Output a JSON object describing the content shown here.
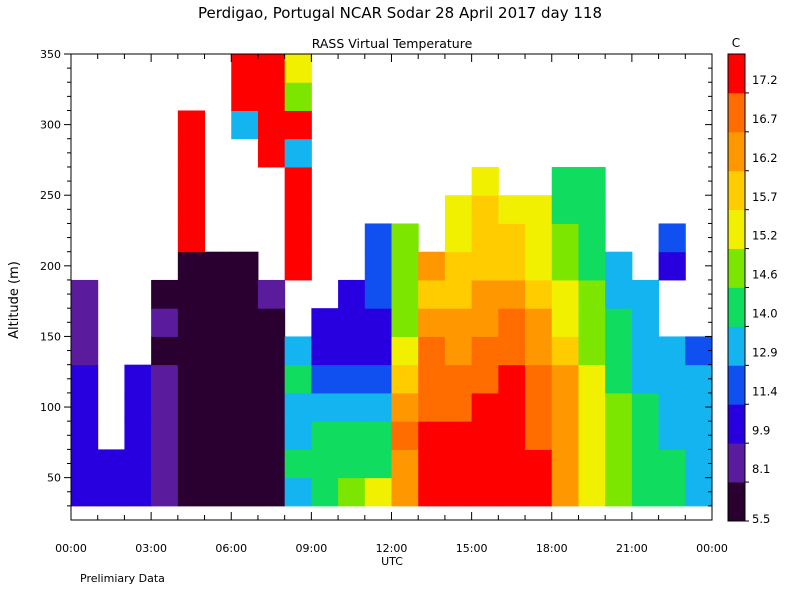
{
  "header": {
    "title": "Perdigao, Portugal  NCAR Sodar  28 April 2017  day 118",
    "subtitle": "RASS Virtual Temperature"
  },
  "footer": {
    "note": "Prelimiary Data"
  },
  "chart_data": {
    "type": "heatmap",
    "title": "Perdigao, Portugal  NCAR Sodar  28 April 2017  day 118",
    "subtitle": "RASS Virtual Temperature",
    "xlabel": "UTC",
    "ylabel": "Altitude (m)",
    "x_ticks": [
      "00:00",
      "03:00",
      "06:00",
      "09:00",
      "12:00",
      "15:00",
      "18:00",
      "21:00",
      "00:00"
    ],
    "xlim_hours": [
      0,
      24
    ],
    "ylim": [
      20,
      350
    ],
    "y_ticks": [
      50,
      100,
      150,
      200,
      250,
      300,
      350
    ],
    "colorbar": {
      "unit": "C",
      "ticks": [
        "5.5",
        "8.1",
        "9.9",
        "11.4",
        "12.9",
        "14.0",
        "14.6",
        "15.2",
        "15.7",
        "16.2",
        "16.7",
        "17.2"
      ],
      "colors": [
        "#2a0030",
        "#5a1c9c",
        "#2800e0",
        "#1050f0",
        "#14b4f0",
        "#10dc60",
        "#7ce600",
        "#f0f000",
        "#ffcc00",
        "#ff9800",
        "#ff6c00",
        "#ff0000"
      ]
    },
    "y_levels": [
      40,
      60,
      80,
      100,
      120,
      140,
      160,
      180,
      200,
      220,
      240,
      260,
      280,
      300,
      320,
      340
    ],
    "hours": [
      0.5,
      1.5,
      2.5,
      3.5,
      4.5,
      5.5,
      6.5,
      7.5,
      8.5,
      9.5,
      10.5,
      11.5,
      12.5,
      13.5,
      14.5,
      15.5,
      16.5,
      17.5,
      18.5,
      19.5,
      20.5,
      21.5,
      22.5,
      23.5
    ],
    "temperature_c": [
      [
        10.5,
        11.2,
        10.2,
        8.5,
        8.0,
        6.0,
        6.5,
        7.0,
        13.0,
        14.2,
        14.6,
        15.2,
        16.2,
        17.2,
        17.4,
        17.4,
        17.6,
        17.5,
        16.2,
        15.2,
        14.6,
        14.4,
        14.2,
        13.8
      ],
      [
        10.3,
        11.0,
        10.5,
        8.3,
        7.8,
        6.0,
        6.2,
        7.1,
        14.0,
        14.0,
        14.0,
        14.0,
        16.5,
        17.2,
        17.3,
        17.4,
        17.5,
        17.3,
        16.4,
        15.4,
        14.8,
        14.3,
        14.0,
        13.5
      ],
      [
        10.2,
        null,
        11.0,
        8.5,
        7.8,
        6.0,
        6.5,
        7.2,
        13.5,
        14.0,
        14.0,
        14.0,
        16.8,
        17.2,
        17.2,
        17.3,
        17.4,
        17.1,
        16.5,
        15.6,
        14.8,
        14.2,
        13.8,
        13.2
      ],
      [
        10.0,
        null,
        10.5,
        8.3,
        7.8,
        6.2,
        6.8,
        7.4,
        13.5,
        12.9,
        12.9,
        12.9,
        16.5,
        17.0,
        17.1,
        17.2,
        17.4,
        17.0,
        16.6,
        15.5,
        14.6,
        14.0,
        13.6,
        12.9
      ],
      [
        9.9,
        null,
        9.9,
        8.2,
        7.6,
        6.0,
        6.5,
        7.0,
        14.4,
        11.4,
        11.4,
        11.4,
        16.0,
        17.0,
        16.9,
        17.0,
        17.2,
        16.9,
        16.3,
        15.3,
        14.5,
        13.8,
        13.3,
        12.9
      ],
      [
        9.7,
        null,
        null,
        8.0,
        7.4,
        6.0,
        6.6,
        7.0,
        12.9,
        11.0,
        11.0,
        11.0,
        15.4,
        16.8,
        16.6,
        16.8,
        17.0,
        16.6,
        16.0,
        15.0,
        14.2,
        13.6,
        13.0,
        12.8
      ],
      [
        9.5,
        null,
        null,
        8.2,
        7.5,
        6.4,
        7.0,
        7.8,
        null,
        10.8,
        10.8,
        11.2,
        15.0,
        16.5,
        16.3,
        16.4,
        16.8,
        16.3,
        15.6,
        14.8,
        14.0,
        13.3,
        null,
        null
      ],
      [
        9.8,
        null,
        null,
        7.5,
        7.0,
        6.8,
        7.4,
        8.2,
        null,
        null,
        11.0,
        12.0,
        14.8,
        16.0,
        16.0,
        16.2,
        16.4,
        16.0,
        15.4,
        14.6,
        13.8,
        13.0,
        null,
        null
      ],
      [
        null,
        null,
        null,
        null,
        7.0,
        7.2,
        7.0,
        null,
        17.4,
        null,
        null,
        12.5,
        15.0,
        16.2,
        16.0,
        16.1,
        16.0,
        15.6,
        14.8,
        14.2,
        13.5,
        null,
        11.2,
        null
      ],
      [
        null,
        null,
        null,
        null,
        17.4,
        null,
        null,
        null,
        17.2,
        null,
        null,
        12.5,
        14.8,
        null,
        15.6,
        16.0,
        15.8,
        15.4,
        14.6,
        14.0,
        null,
        null,
        11.4,
        null
      ],
      [
        null,
        null,
        null,
        null,
        17.4,
        null,
        null,
        null,
        17.3,
        null,
        null,
        null,
        null,
        null,
        15.5,
        15.8,
        15.6,
        15.2,
        14.5,
        14.2,
        null,
        null,
        null,
        null
      ],
      [
        null,
        null,
        null,
        null,
        17.4,
        null,
        null,
        null,
        17.3,
        null,
        null,
        null,
        null,
        null,
        null,
        15.6,
        null,
        null,
        14.5,
        14.2,
        null,
        null,
        null,
        null
      ],
      [
        null,
        null,
        null,
        null,
        17.5,
        null,
        null,
        17.4,
        12.9,
        null,
        null,
        null,
        null,
        null,
        null,
        null,
        null,
        null,
        null,
        null,
        null,
        null,
        null,
        null
      ],
      [
        null,
        null,
        null,
        null,
        17.5,
        null,
        12.9,
        17.4,
        17.4,
        null,
        null,
        null,
        null,
        null,
        null,
        null,
        null,
        null,
        null,
        null,
        null,
        null,
        null,
        null
      ],
      [
        null,
        null,
        null,
        null,
        null,
        null,
        17.5,
        17.4,
        14.6,
        null,
        null,
        null,
        null,
        null,
        null,
        null,
        null,
        null,
        null,
        null,
        null,
        null,
        null,
        null
      ],
      [
        null,
        null,
        null,
        null,
        null,
        null,
        17.6,
        17.5,
        15.2,
        null,
        null,
        null,
        null,
        null,
        null,
        null,
        null,
        null,
        null,
        null,
        null,
        null,
        null,
        null
      ]
    ]
  }
}
